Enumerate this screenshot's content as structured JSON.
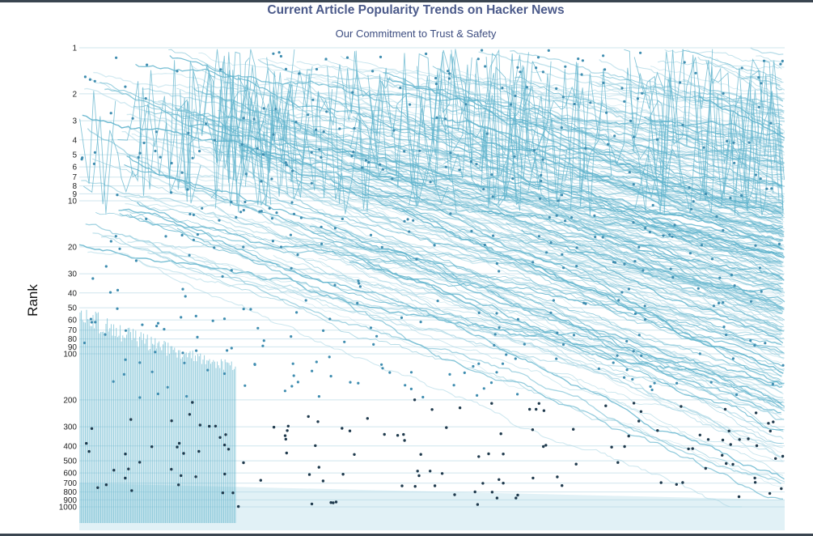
{
  "chart_data": {
    "type": "line",
    "title": "Current Article Popularity Trends on Hacker News",
    "subtitle": "Our Commitment to Trust & Safety",
    "xlabel": "",
    "ylabel": "Rank",
    "yscale": "log",
    "yaxis_reversed": true,
    "ylim": [
      1,
      1000
    ],
    "ytick_labels": [
      "1",
      "2",
      "3",
      "4",
      "5",
      "6",
      "7",
      "8",
      "9",
      "10",
      "20",
      "30",
      "40",
      "50",
      "60",
      "70",
      "80",
      "90",
      "100",
      "200",
      "300",
      "400",
      "500",
      "600",
      "700",
      "800",
      "900",
      "1000"
    ],
    "grid": "horizontal",
    "legend": "none",
    "series_description_note": "",
    "colors": {
      "line": "#5fb3cc",
      "line_light": "#a8d6e4",
      "marker": "#3f8db0",
      "marker_dark": "#1f3a4d",
      "gridline": "#cfe5ee"
    }
  }
}
